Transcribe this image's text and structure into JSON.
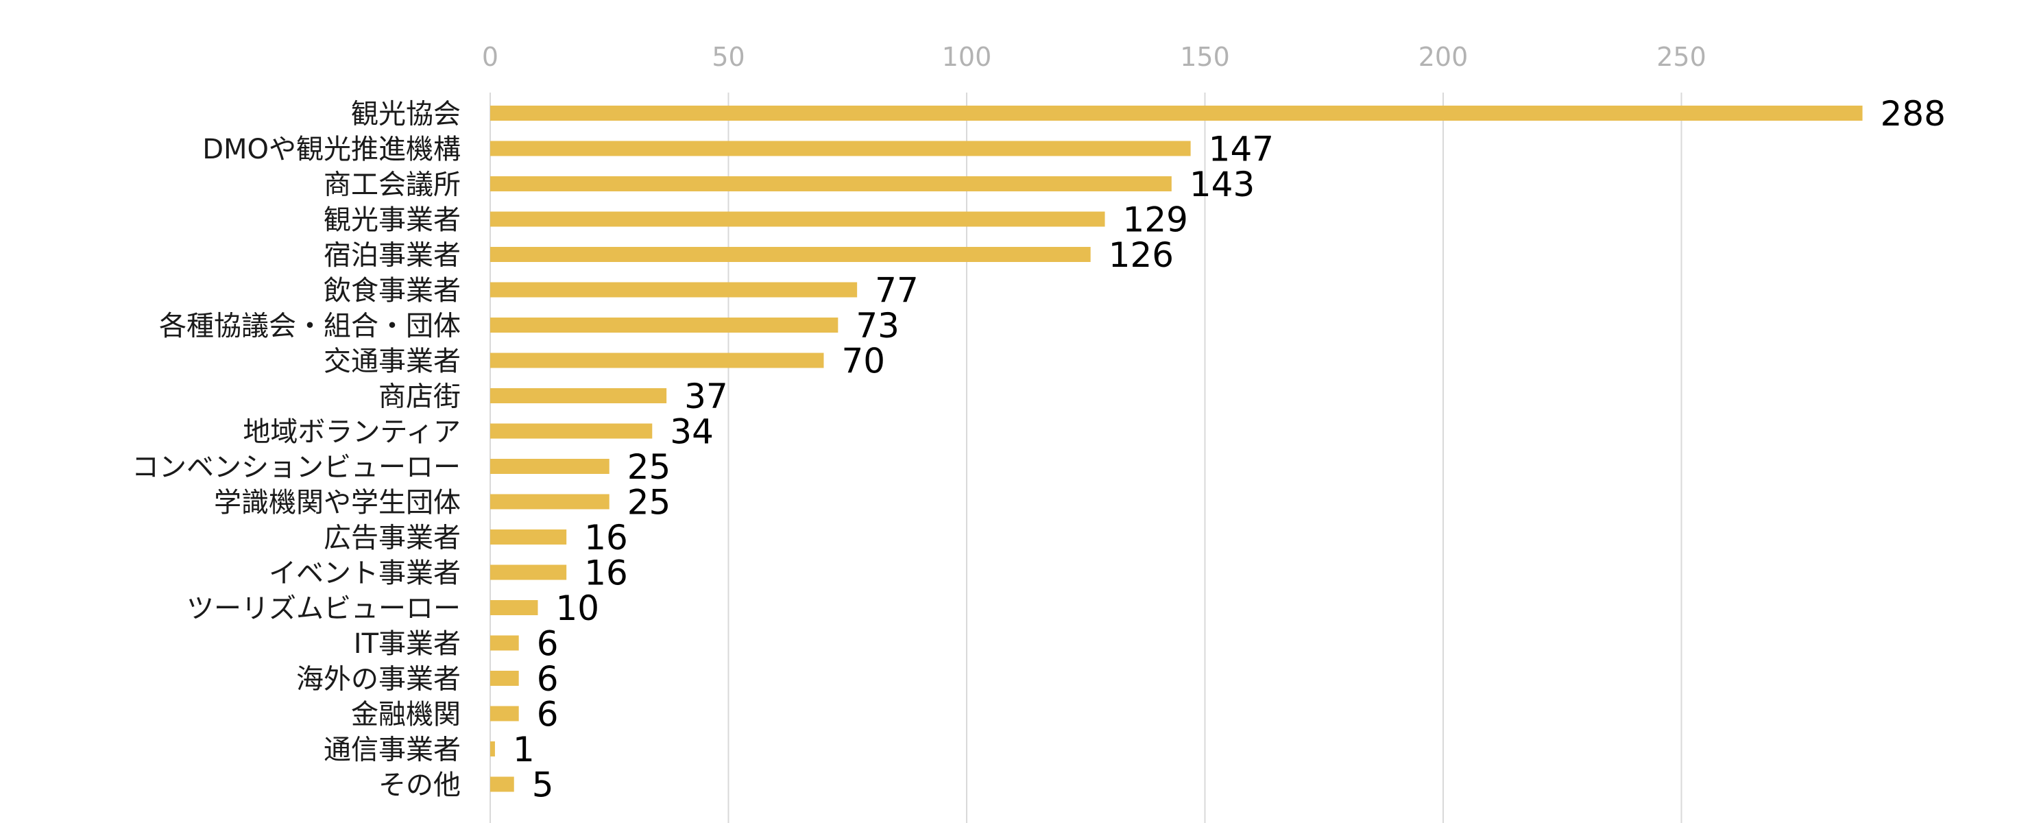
{
  "chart_data": {
    "type": "bar",
    "orientation": "horizontal",
    "title": "",
    "xlabel": "",
    "ylabel": "",
    "xlim": [
      0,
      288
    ],
    "xticks": [
      0,
      50,
      100,
      150,
      200,
      250
    ],
    "xtick_labels": [
      "0",
      "50",
      "100",
      "150",
      "200",
      "250"
    ],
    "axis_position": "top",
    "grid": true,
    "legend": "none",
    "bar_color": "#e8bd4f",
    "grid_color": "#d9d9d9",
    "categories": [
      "観光協会",
      "DMOや観光推進機構",
      "商工会議所",
      "観光事業者",
      "宿泊事業者",
      "飲食事業者",
      "各種協議会・組合・団体",
      "交通事業者",
      "商店街",
      "地域ボランティア",
      "コンベンションビューロー",
      "学識機関や学生団体",
      "広告事業者",
      "イベント事業者",
      "ツーリズムビューロー",
      "IT事業者",
      "海外の事業者",
      "金融機関",
      "通信事業者",
      "その他"
    ],
    "values": [
      288,
      147,
      143,
      129,
      126,
      77,
      73,
      70,
      37,
      34,
      25,
      25,
      16,
      16,
      10,
      6,
      6,
      6,
      1,
      5
    ],
    "value_labels": [
      "288",
      "147",
      "143",
      "129",
      "126",
      "77",
      "73",
      "70",
      "37",
      "34",
      "25",
      "25",
      "16",
      "16",
      "10",
      "6",
      "6",
      "6",
      "1",
      "5"
    ]
  }
}
